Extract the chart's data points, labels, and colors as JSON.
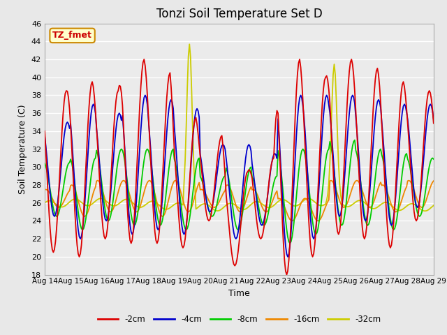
{
  "title": "Tonzi Soil Temperature Set D",
  "xlabel": "Time",
  "ylabel": "Soil Temperature (C)",
  "ylim": [
    18,
    46
  ],
  "yticks": [
    18,
    20,
    22,
    24,
    26,
    28,
    30,
    32,
    34,
    36,
    38,
    40,
    42,
    44,
    46
  ],
  "xlim": [
    0,
    360
  ],
  "x_tick_labels": [
    "Aug 14",
    "Aug 15",
    "Aug 16",
    "Aug 17",
    "Aug 18",
    "Aug 19",
    "Aug 20",
    "Aug 21",
    "Aug 22",
    "Aug 23",
    "Aug 24",
    "Aug 25",
    "Aug 26",
    "Aug 27",
    "Aug 28",
    "Aug 29"
  ],
  "x_tick_positions": [
    0,
    24,
    48,
    72,
    96,
    120,
    144,
    168,
    192,
    216,
    240,
    264,
    288,
    312,
    336,
    360
  ],
  "legend_labels": [
    "-2cm",
    "-4cm",
    "-8cm",
    "-16cm",
    "-32cm"
  ],
  "legend_colors": [
    "#dd0000",
    "#0000cc",
    "#00cc00",
    "#ee8800",
    "#cccc00"
  ],
  "annotation_text": "TZ_fmet",
  "annotation_box_color": "#ffffcc",
  "annotation_text_color": "#cc0000",
  "annotation_border_color": "#cc8800",
  "background_color": "#e8e8e8",
  "plot_bg_color": "#ebebeb",
  "grid_color": "#ffffff",
  "title_fontsize": 12
}
